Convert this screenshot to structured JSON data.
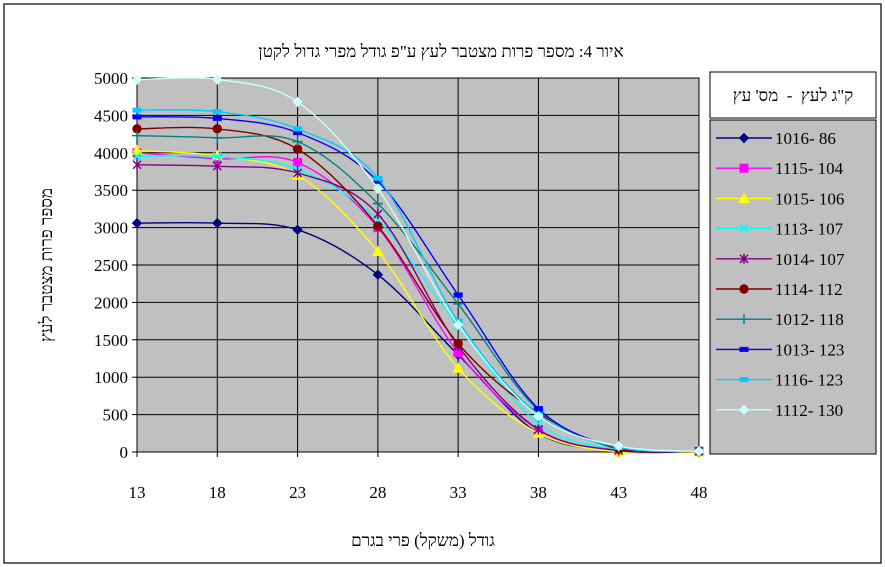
{
  "chart_data": {
    "type": "line",
    "title": "איור 4: מספר פרות מצטבר לעץ ע\"פ גודל מפרי גדול לקטן",
    "xlabel": "גודל (משקל) פרי בגרם",
    "ylabel": "מספר פרות מצטבר לעץ",
    "x": [
      13,
      18,
      23,
      28,
      33,
      38,
      43,
      48
    ],
    "xlim": [
      13,
      48
    ],
    "ylim": [
      0,
      5000
    ],
    "yticks": [
      0,
      500,
      1000,
      1500,
      2000,
      2500,
      3000,
      3500,
      4000,
      4500,
      5000
    ],
    "grid": true,
    "legend_title": "ק\"ג לעץ  -  מס' עץ",
    "legend_position": "right",
    "series": [
      {
        "name": "1016- 86",
        "color": "#000080",
        "marker": "diamond",
        "values": [
          3060,
          3060,
          2970,
          2370,
          1300,
          250,
          20,
          10
        ]
      },
      {
        "name": "1115- 104",
        "color": "#ff00ff",
        "marker": "square",
        "values": [
          4000,
          3920,
          3870,
          3000,
          1330,
          300,
          10,
          10
        ]
      },
      {
        "name": "1015- 106",
        "color": "#ffff00",
        "marker": "triangle",
        "values": [
          4030,
          3960,
          3700,
          2680,
          1120,
          250,
          0,
          0
        ]
      },
      {
        "name": "1113- 107",
        "color": "#00ffff",
        "marker": "x",
        "values": [
          3950,
          3950,
          3780,
          3100,
          1680,
          380,
          30,
          10
        ]
      },
      {
        "name": "1014- 107",
        "color": "#800080",
        "marker": "star",
        "values": [
          3840,
          3820,
          3730,
          3180,
          1420,
          300,
          20,
          10
        ]
      },
      {
        "name": "1114- 112",
        "color": "#800000",
        "marker": "circle",
        "values": [
          4320,
          4320,
          4050,
          3020,
          1450,
          520,
          40,
          10
        ]
      },
      {
        "name": "1012- 118",
        "color": "#008080",
        "marker": "plus",
        "values": [
          4230,
          4200,
          4150,
          3320,
          1980,
          560,
          60,
          10
        ]
      },
      {
        "name": "1013- 123",
        "color": "#0000ff",
        "marker": "dash",
        "values": [
          4480,
          4460,
          4270,
          3620,
          2100,
          580,
          60,
          10
        ]
      },
      {
        "name": "1116- 123",
        "color": "#00ccff",
        "marker": "dash",
        "values": [
          4570,
          4550,
          4320,
          3660,
          1750,
          500,
          60,
          10
        ]
      },
      {
        "name": "1112- 130",
        "color": "#ccffff",
        "marker": "diamond",
        "values": [
          4980,
          4980,
          4680,
          3520,
          1700,
          480,
          80,
          10
        ]
      }
    ]
  }
}
